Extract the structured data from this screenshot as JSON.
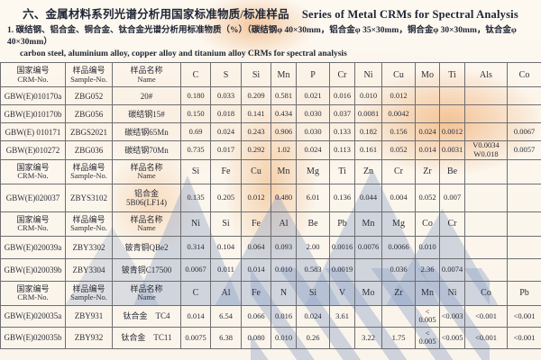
{
  "title": {
    "zh": "六、金属材料系列光谱分析用国家标准物质/标准样品",
    "en": "Series of Metal CRMs for Spectral Analysis"
  },
  "subtitle": {
    "line1": "1. 碳结钢、铝合金、铜合金、钛合金光谱分析用标准物质（%）（碳结钢φ 40×30mm，铝合金φ 35×30mm，铜合金φ 30×30mm，钛合金φ 40×30mm）",
    "line2": "carbon steel, aluminium alloy, copper alloy and titanium alloy CRMs for spectral analysis"
  },
  "column_headers": {
    "crm_zh": "国家编号",
    "crm_en": "CRM-No.",
    "sample_zh": "样品编号",
    "sample_en": "Sample-No.",
    "name_zh": "样品名称",
    "name_en": "Name"
  },
  "sections": [
    {
      "group": "carbon-steel",
      "elements": [
        "C",
        "S",
        "Si",
        "Mn",
        "P",
        "Cr",
        "Ni",
        "Cu",
        "Mo",
        "Ti",
        "Als",
        "Co"
      ],
      "rows": [
        {
          "crm": "GBW(E)010170a",
          "sample": "ZBG052",
          "name": "20#",
          "values": [
            "0.180",
            "0.033",
            "0.209",
            "0.581",
            "0.021",
            "0.016",
            "0.010",
            "0.012",
            "",
            "",
            "",
            ""
          ]
        },
        {
          "crm": "GBW(E)010170b",
          "sample": "ZBG056",
          "name": "碳结钢15#",
          "values": [
            "0.150",
            "0.018",
            "0.141",
            "0.434",
            "0.030",
            "0.037",
            "0.0081",
            "0.0042",
            "",
            "",
            "",
            ""
          ]
        },
        {
          "crm": "GBW(E) 010171",
          "sample": "ZBGS2021",
          "name": "碳结钢65Mn",
          "values": [
            "0.69",
            "0.024",
            "0.243",
            "0.906",
            "0.030",
            "0.133",
            "0.182",
            "0.156",
            "0.024",
            "0.0012",
            "",
            "0.0067"
          ]
        },
        {
          "crm": "GBW(E)010272",
          "sample": "ZBG036",
          "name": "碳结钢70Mn",
          "values": [
            "0.735",
            "0.017",
            "0.292",
            "1.02",
            "0.024",
            "0.113",
            "0.161",
            "0.052",
            "0.014",
            "0.0031",
            "V0.0034\nW0.018",
            "0.0057"
          ]
        }
      ]
    },
    {
      "group": "aluminium-alloy",
      "elements": [
        "Si",
        "Fe",
        "Cu",
        "Mn",
        "Mg",
        "Ti",
        "Zn",
        "Cr",
        "Zr",
        "Be",
        "",
        ""
      ],
      "rows": [
        {
          "crm": "GBW(E)020037",
          "sample": "ZBYS3102",
          "name": "铝合金\n5B06(LF14)",
          "values": [
            "0.135",
            "0.205",
            "0.012",
            "0.480",
            "6.01",
            "0.136",
            "0.044",
            "0.004",
            "0.052",
            "0.007",
            "",
            ""
          ]
        }
      ]
    },
    {
      "group": "copper-alloy",
      "elements": [
        "Ni",
        "Si",
        "Fe",
        "Al",
        "Be",
        "Pb",
        "Mn",
        "Mg",
        "Co",
        "Cr",
        "",
        ""
      ],
      "rows": [
        {
          "crm": "GBW(E)020039a",
          "sample": "ZBY3302",
          "name": "铍青铜QBe2",
          "values": [
            "0.314",
            "0.104",
            "0.064",
            "0.093",
            "2.00",
            "0.0016",
            "0.0076",
            "0.0066",
            "0.010",
            "",
            "",
            ""
          ]
        },
        {
          "crm": "GBW(E)020039b",
          "sample": "ZBY3304",
          "name": "铍青铜C17500",
          "values": [
            "0.0067",
            "0.011",
            "0.014",
            "0.010",
            "0.583",
            "0.0019",
            "",
            "0.036",
            "2.36",
            "0.0074",
            "",
            ""
          ]
        }
      ]
    },
    {
      "group": "titanium-alloy",
      "elements": [
        "C",
        "Al",
        "Fe",
        "N",
        "Si",
        "V",
        "Mo",
        "Zr",
        "Mn",
        "Ni",
        "Co",
        "Pb"
      ],
      "rows": [
        {
          "crm": "GBW(E)020035a",
          "sample": "ZBY931",
          "name": "钛合金　TC4",
          "values": [
            "0.014",
            "6.54",
            "0.066",
            "0.016",
            "0.024",
            "3.61",
            "",
            "",
            "<\n0.005",
            "<0.003",
            "<0.001",
            "<0.001"
          ]
        },
        {
          "crm": "GBW(E)020035b",
          "sample": "ZBY932",
          "name": "钛合金　TC11",
          "values": [
            "0.0075",
            "6.38",
            "0.080",
            "0.010",
            "0.26",
            "",
            "3.22",
            "1.75",
            "<\n0.005",
            "<0.005",
            "<0.001",
            "<0.001"
          ]
        }
      ]
    }
  ]
}
